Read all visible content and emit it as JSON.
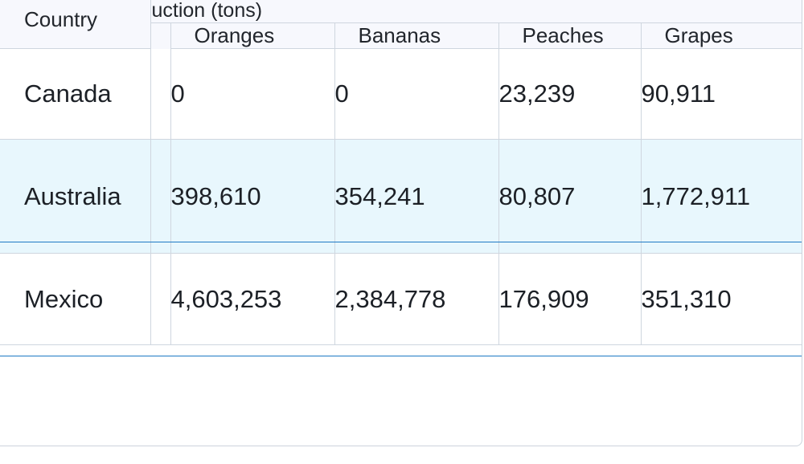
{
  "table": {
    "country_header": "Country",
    "group_header": "uction (tons)",
    "columns": [
      "Oranges",
      "Bananas",
      "Peaches",
      "Grapes"
    ],
    "rows": [
      {
        "country": "Canada",
        "values": [
          "0",
          "0",
          "23,239",
          "90,911"
        ]
      },
      {
        "country": "Australia",
        "values": [
          "398,610",
          "354,241",
          "80,807",
          "1,772,911"
        ],
        "selected": true
      },
      {
        "country": "Mexico",
        "values": [
          "4,603,253",
          "2,384,778",
          "176,909",
          "351,310"
        ]
      }
    ]
  },
  "colors": {
    "header_bg": "#f7f8fd",
    "selected_row_bg": "#e8f7fd",
    "selected_row_border": "#1d79c4",
    "grid_line": "#cfd6df"
  }
}
